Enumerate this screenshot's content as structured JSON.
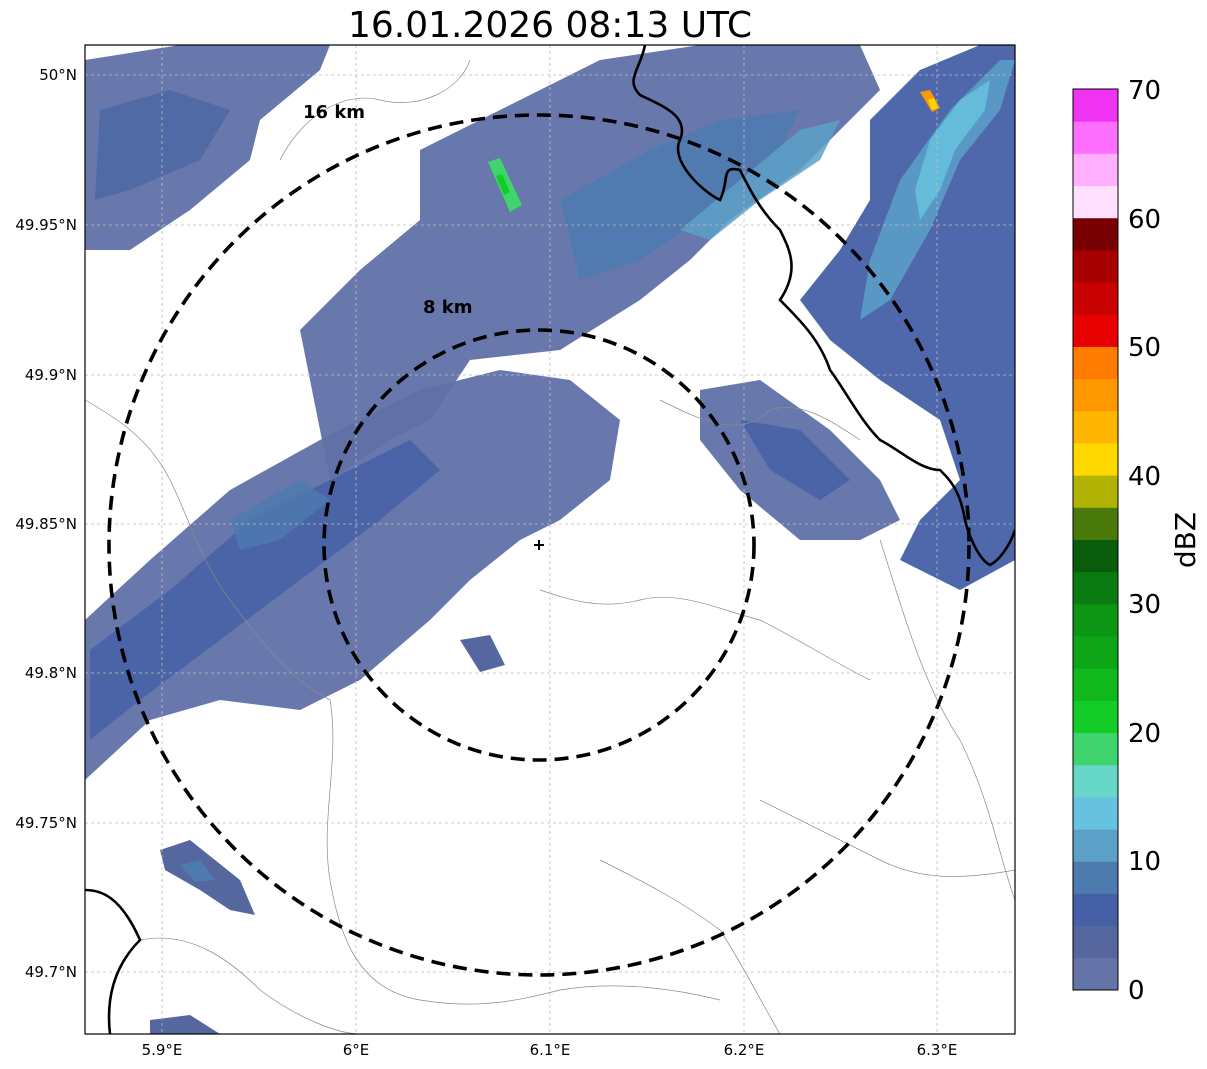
{
  "title": "16.01.2026 08:13 UTC",
  "map": {
    "lon_ticks": [
      "5.9°E",
      "6°E",
      "6.1°E",
      "6.2°E",
      "6.3°E"
    ],
    "lat_ticks": [
      "50°N",
      "49.95°N",
      "49.9°N",
      "49.85°N",
      "49.8°N",
      "49.75°N",
      "49.7°N"
    ],
    "range_rings": [
      {
        "label": "16 km",
        "radius_km": 16
      },
      {
        "label": "8 km",
        "radius_km": 8
      }
    ],
    "radar_site": {
      "lon": 6.095,
      "lat": 49.844
    },
    "grid": true
  },
  "colorbar": {
    "label": "dBZ",
    "ticks": [
      "0",
      "10",
      "20",
      "30",
      "40",
      "50",
      "60",
      "70"
    ],
    "min": 0,
    "max": 70,
    "step": 2.5,
    "colors": [
      "#6574a8",
      "#56679f",
      "#4560a6",
      "#4d7bb0",
      "#5ca0c8",
      "#66c2de",
      "#66d6c9",
      "#3fd46e",
      "#14cc28",
      "#10b81c",
      "#0ea616",
      "#0c9613",
      "#0a7b10",
      "#095c0c",
      "#4a7a0c",
      "#b0b204",
      "#ffd800",
      "#ffb600",
      "#ff9800",
      "#ff7c00",
      "#e60000",
      "#c80000",
      "#a80000",
      "#780000",
      "#ffe0ff",
      "#ffb0ff",
      "#ff6fff",
      "#f033f0"
    ]
  }
}
